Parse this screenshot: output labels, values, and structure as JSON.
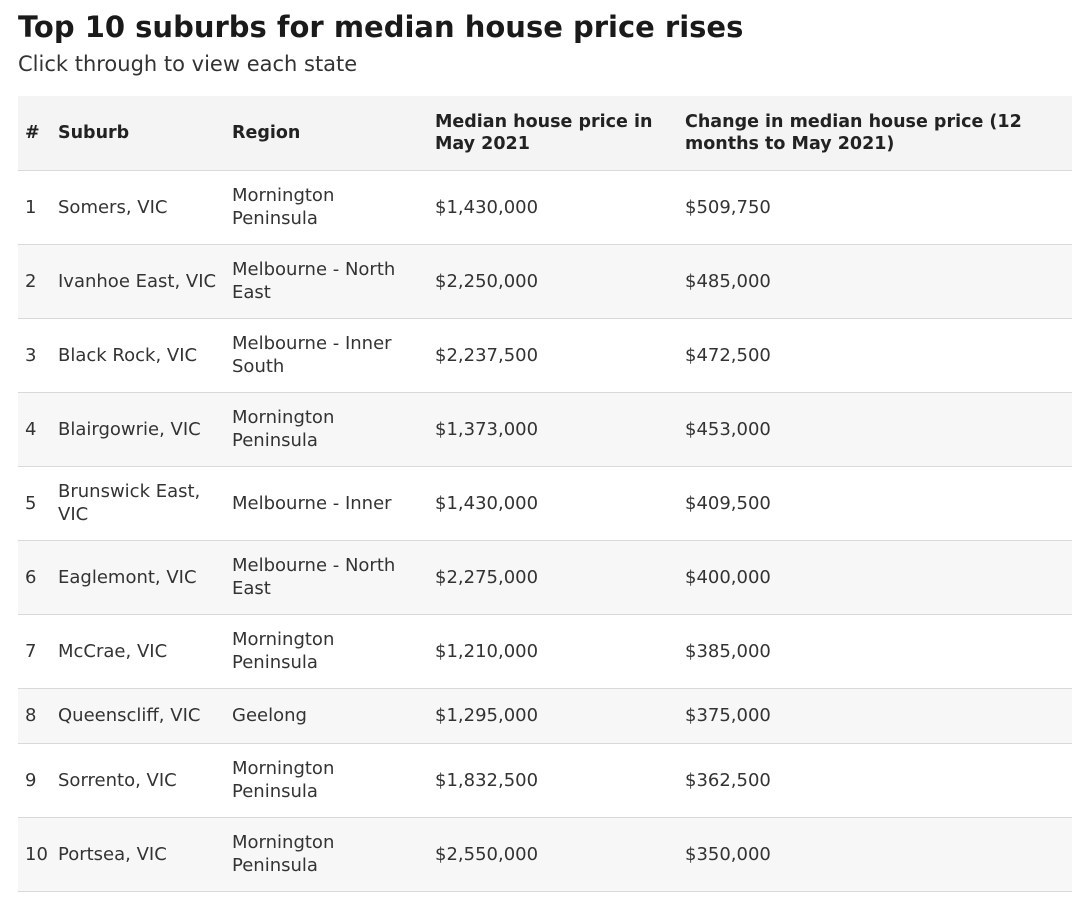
{
  "header": {
    "title": "Top 10 suburbs for median house price rises",
    "subtitle": "Click through to view each state"
  },
  "table": {
    "columns": [
      "#",
      "Suburb",
      "Region",
      "Median house price in May 2021",
      "Change in median house price (12 months to May 2021)"
    ],
    "rows": [
      {
        "rank": "1",
        "suburb": "Somers, VIC",
        "region": "Mornington Peninsula",
        "price": "$1,430,000",
        "change": "$509,750"
      },
      {
        "rank": "2",
        "suburb": "Ivanhoe East, VIC",
        "region": "Melbourne - North East",
        "price": "$2,250,000",
        "change": "$485,000"
      },
      {
        "rank": "3",
        "suburb": "Black Rock, VIC",
        "region": "Melbourne - Inner South",
        "price": "$2,237,500",
        "change": "$472,500"
      },
      {
        "rank": "4",
        "suburb": "Blairgowrie, VIC",
        "region": "Mornington Peninsula",
        "price": "$1,373,000",
        "change": "$453,000"
      },
      {
        "rank": "5",
        "suburb": "Brunswick East, VIC",
        "region": "Melbourne - Inner",
        "price": "$1,430,000",
        "change": "$409,500"
      },
      {
        "rank": "6",
        "suburb": "Eaglemont, VIC",
        "region": "Melbourne - North East",
        "price": "$2,275,000",
        "change": "$400,000"
      },
      {
        "rank": "7",
        "suburb": "McCrae, VIC",
        "region": "Mornington Peninsula",
        "price": "$1,210,000",
        "change": "$385,000"
      },
      {
        "rank": "8",
        "suburb": "Queenscliff, VIC",
        "region": "Geelong",
        "price": "$1,295,000",
        "change": "$375,000"
      },
      {
        "rank": "9",
        "suburb": "Sorrento, VIC",
        "region": "Mornington Peninsula",
        "price": "$1,832,500",
        "change": "$362,500"
      },
      {
        "rank": "10",
        "suburb": "Portsea, VIC",
        "region": "Mornington Peninsula",
        "price": "$2,550,000",
        "change": "$350,000"
      }
    ]
  }
}
